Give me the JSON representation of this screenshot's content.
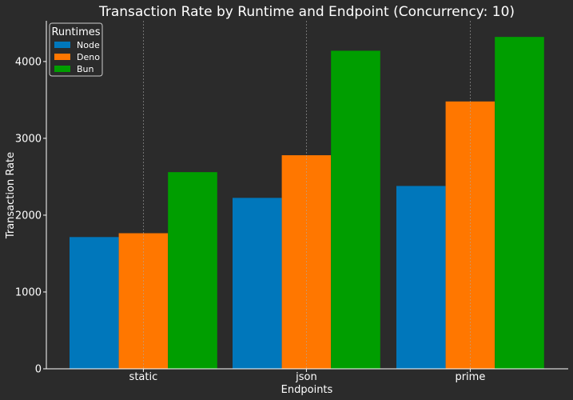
{
  "chart_data": {
    "type": "bar",
    "title": "Transaction Rate by Runtime and Endpoint (Concurrency: 10)",
    "xlabel": "Endpoints",
    "ylabel": "Transaction Rate",
    "categories": [
      "static",
      "json",
      "prime"
    ],
    "series": [
      {
        "name": "Node",
        "color": "#0077bb",
        "values": [
          1715,
          2225,
          2380
        ]
      },
      {
        "name": "Deno",
        "color": "#ff7700",
        "values": [
          1765,
          2780,
          3480
        ]
      },
      {
        "name": "Bun",
        "color": "#009e00",
        "values": [
          2560,
          4140,
          4320
        ]
      }
    ],
    "ylim": [
      0,
      4530
    ],
    "yticks": [
      0,
      1000,
      2000,
      3000,
      4000
    ],
    "grid": "vertical-dashed",
    "legend": {
      "title": "Runtimes",
      "placement": "top-left"
    },
    "colors": {
      "background": "#2b2b2b",
      "text": "#ffffff",
      "grid": "#aaaaaa"
    }
  }
}
